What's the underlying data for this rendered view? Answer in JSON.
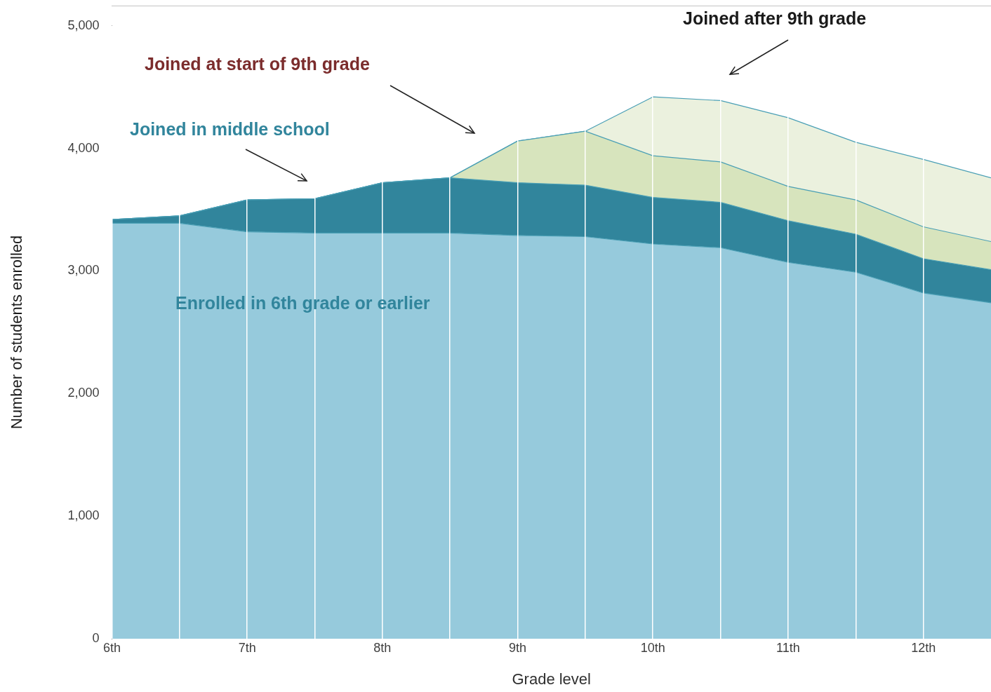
{
  "chart_data": {
    "type": "area",
    "stacked": true,
    "xlabel": "Grade level",
    "ylabel": "Number of students enrolled",
    "x": [
      6,
      6.5,
      7,
      7.5,
      8,
      8.5,
      9,
      9.5,
      10,
      10.5,
      11,
      11.5,
      12,
      12.5
    ],
    "series": [
      {
        "name": "Enrolled in 6th grade or earlier",
        "color": "#96cadc",
        "values": [
          3390,
          3390,
          3320,
          3310,
          3310,
          3310,
          3290,
          3280,
          3220,
          3190,
          3070,
          2990,
          2820,
          2740
        ]
      },
      {
        "name": "Joined in middle school",
        "color": "#31859c",
        "values": [
          30,
          60,
          260,
          280,
          410,
          450,
          430,
          420,
          380,
          370,
          340,
          310,
          280,
          270
        ]
      },
      {
        "color": "#d7e4bd",
        "values": [
          0,
          0,
          0,
          0,
          0,
          0,
          340,
          440,
          340,
          330,
          280,
          280,
          260,
          230
        ]
      },
      {
        "color": "#ebf1de",
        "values": [
          0,
          0,
          0,
          0,
          0,
          0,
          0,
          0,
          480,
          500,
          560,
          470,
          550,
          520
        ]
      }
    ],
    "xlim": [
      6,
      12.5
    ],
    "xticks": [
      {
        "value": 6,
        "label": "6th"
      },
      {
        "value": 6.5,
        "label": null
      },
      {
        "value": 7,
        "label": "7th"
      },
      {
        "value": 7.5,
        "label": null
      },
      {
        "value": 8,
        "label": "8th"
      },
      {
        "value": 8.5,
        "label": null
      },
      {
        "value": 9,
        "label": "9th"
      },
      {
        "value": 9.5,
        "label": null
      },
      {
        "value": 10,
        "label": "10th"
      },
      {
        "value": 10.5,
        "label": null
      },
      {
        "value": 11,
        "label": "11th"
      },
      {
        "value": 11.5,
        "label": null
      },
      {
        "value": 12,
        "label": "12th"
      }
    ],
    "ylim": [
      0,
      5000
    ],
    "yticks": [
      0,
      {
        "value": 1000,
        "label": "1,000"
      },
      {
        "value": 2000,
        "label": "2,000"
      },
      {
        "value": 3000,
        "label": "3,000"
      },
      {
        "value": 4000,
        "label": "4,000"
      },
      {
        "value": 5000,
        "label": "5,000"
      }
    ],
    "annotations": [
      "Joined at start of 9th grade",
      "Joined after 9th grade"
    ],
    "grid": "x",
    "legend": false
  }
}
